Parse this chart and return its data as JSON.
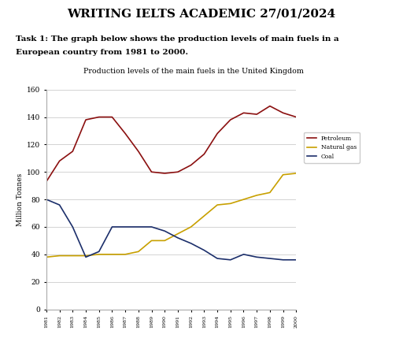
{
  "title_main": "WRITING IELTS ACADEMIC 27/01/2024",
  "task_line1": "Task 1: The graph below shows the production levels of main fuels in a",
  "task_line2": "European country from 1981 to 2000.",
  "chart_title": "Production levels of the main fuels in the United Kingdom",
  "ylabel": "Million Tonnes",
  "years": [
    1981,
    1982,
    1983,
    1984,
    1985,
    1986,
    1987,
    1988,
    1989,
    1990,
    1991,
    1992,
    1993,
    1994,
    1995,
    1996,
    1997,
    1998,
    1999,
    2000
  ],
  "petroleum": [
    93,
    108,
    115,
    138,
    140,
    140,
    128,
    115,
    100,
    99,
    100,
    105,
    113,
    128,
    138,
    143,
    142,
    148,
    143,
    140
  ],
  "natural_gas": [
    38,
    39,
    39,
    39,
    40,
    40,
    40,
    42,
    50,
    50,
    55,
    60,
    68,
    76,
    77,
    80,
    83,
    85,
    98,
    99
  ],
  "coal": [
    80,
    76,
    60,
    38,
    42,
    60,
    60,
    60,
    60,
    57,
    52,
    48,
    43,
    37,
    36,
    40,
    38,
    37,
    36,
    36
  ],
  "petroleum_color": "#8B1010",
  "natural_gas_color": "#C8A000",
  "coal_color": "#1C2F6B",
  "bg_color": "#ffffff",
  "grid_color": "#cccccc",
  "ylim": [
    0,
    160
  ],
  "yticks": [
    0,
    20,
    40,
    60,
    80,
    100,
    120,
    140,
    160
  ]
}
